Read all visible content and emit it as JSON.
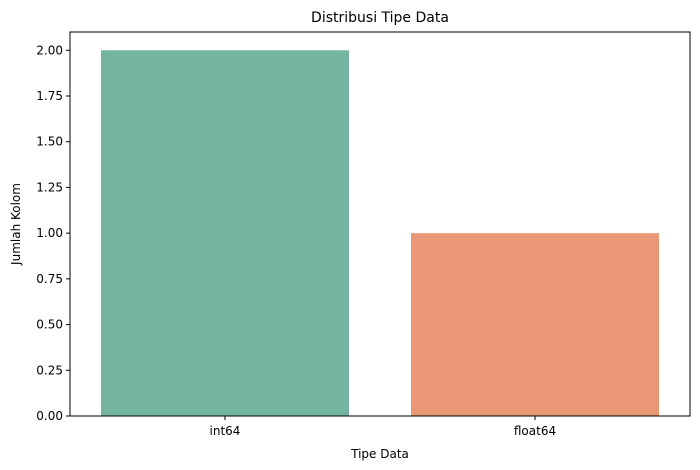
{
  "chart_data": {
    "type": "bar",
    "title": "Distribusi Tipe Data",
    "xlabel": "Tipe Data",
    "ylabel": "Jumlah Kolom",
    "categories": [
      "int64",
      "float64"
    ],
    "values": [
      2,
      1
    ],
    "colors": [
      "#73b5a1",
      "#e99775"
    ],
    "ylim": [
      0,
      2.1
    ],
    "yticks": [
      0,
      0.25,
      0.5,
      0.75,
      1.0,
      1.25,
      1.5,
      1.75,
      2.0
    ],
    "ytick_labels": [
      "0.00",
      "0.25",
      "0.50",
      "0.75",
      "1.00",
      "1.25",
      "1.50",
      "1.75",
      "2.00"
    ],
    "grid": false,
    "legend": "none"
  }
}
